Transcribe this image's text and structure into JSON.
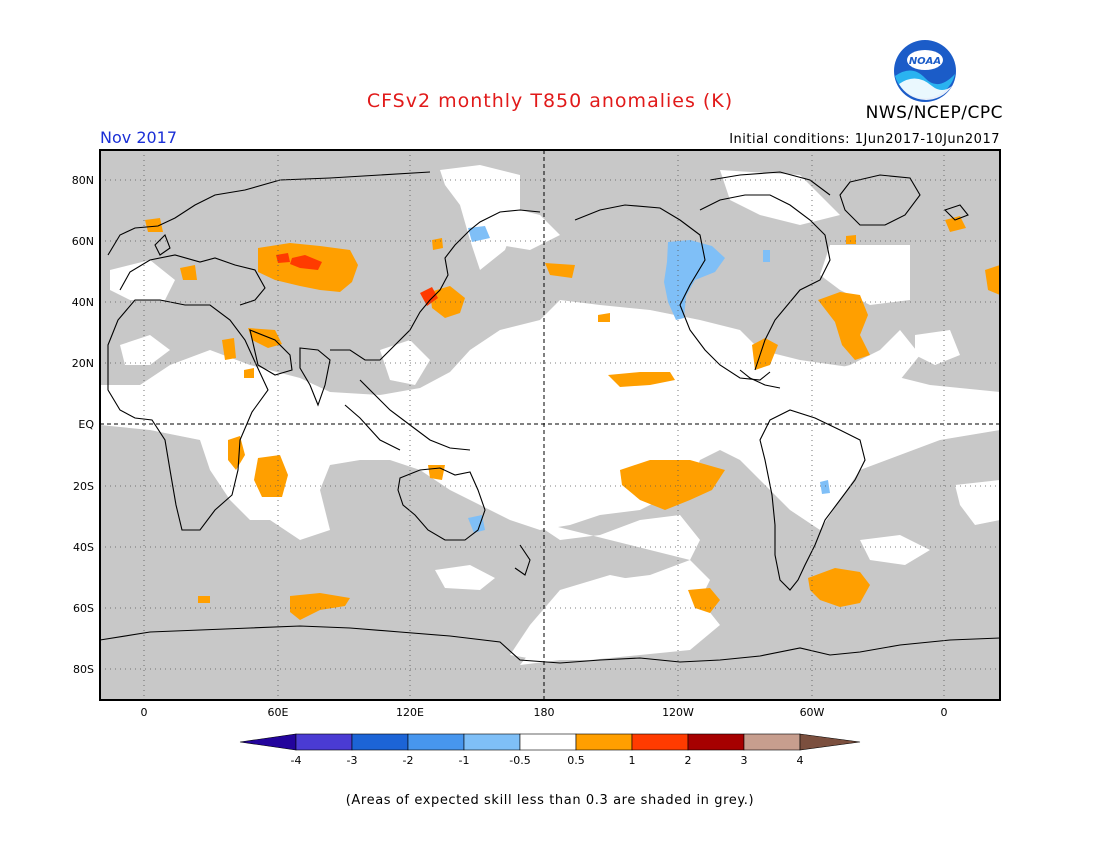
{
  "title": "CFSv2 monthly T850 anomalies (K)",
  "valid_month": "Nov 2017",
  "agency": "NWS/NCEP/CPC",
  "logo_text": "NOAA",
  "initial_conditions": "Initial conditions: 1Jun2017-10Jun2017",
  "footnote": "(Areas of expected skill less than 0.3 are shaded in grey.)",
  "map": {
    "lat_ticks": [
      "80N",
      "60N",
      "40N",
      "20N",
      "EQ",
      "20S",
      "40S",
      "60S",
      "80S"
    ],
    "lon_ticks": [
      "0",
      "60E",
      "120E",
      "180",
      "120W",
      "60W",
      "0"
    ],
    "colors": {
      "low_skill": "#c8c8c8",
      "coast": "#000000"
    }
  },
  "legend": {
    "labels": [
      "-4",
      "-3",
      "-2",
      "-1",
      "-0.5",
      "0.5",
      "1",
      "2",
      "3",
      "4"
    ],
    "colors": [
      "#23049c",
      "#4a3bd3",
      "#1c64d6",
      "#4796ee",
      "#7fbff7",
      "#ffffff",
      "#ff9f00",
      "#ff3b00",
      "#a60000",
      "#c79e8e",
      "#7b4f3e"
    ]
  }
}
